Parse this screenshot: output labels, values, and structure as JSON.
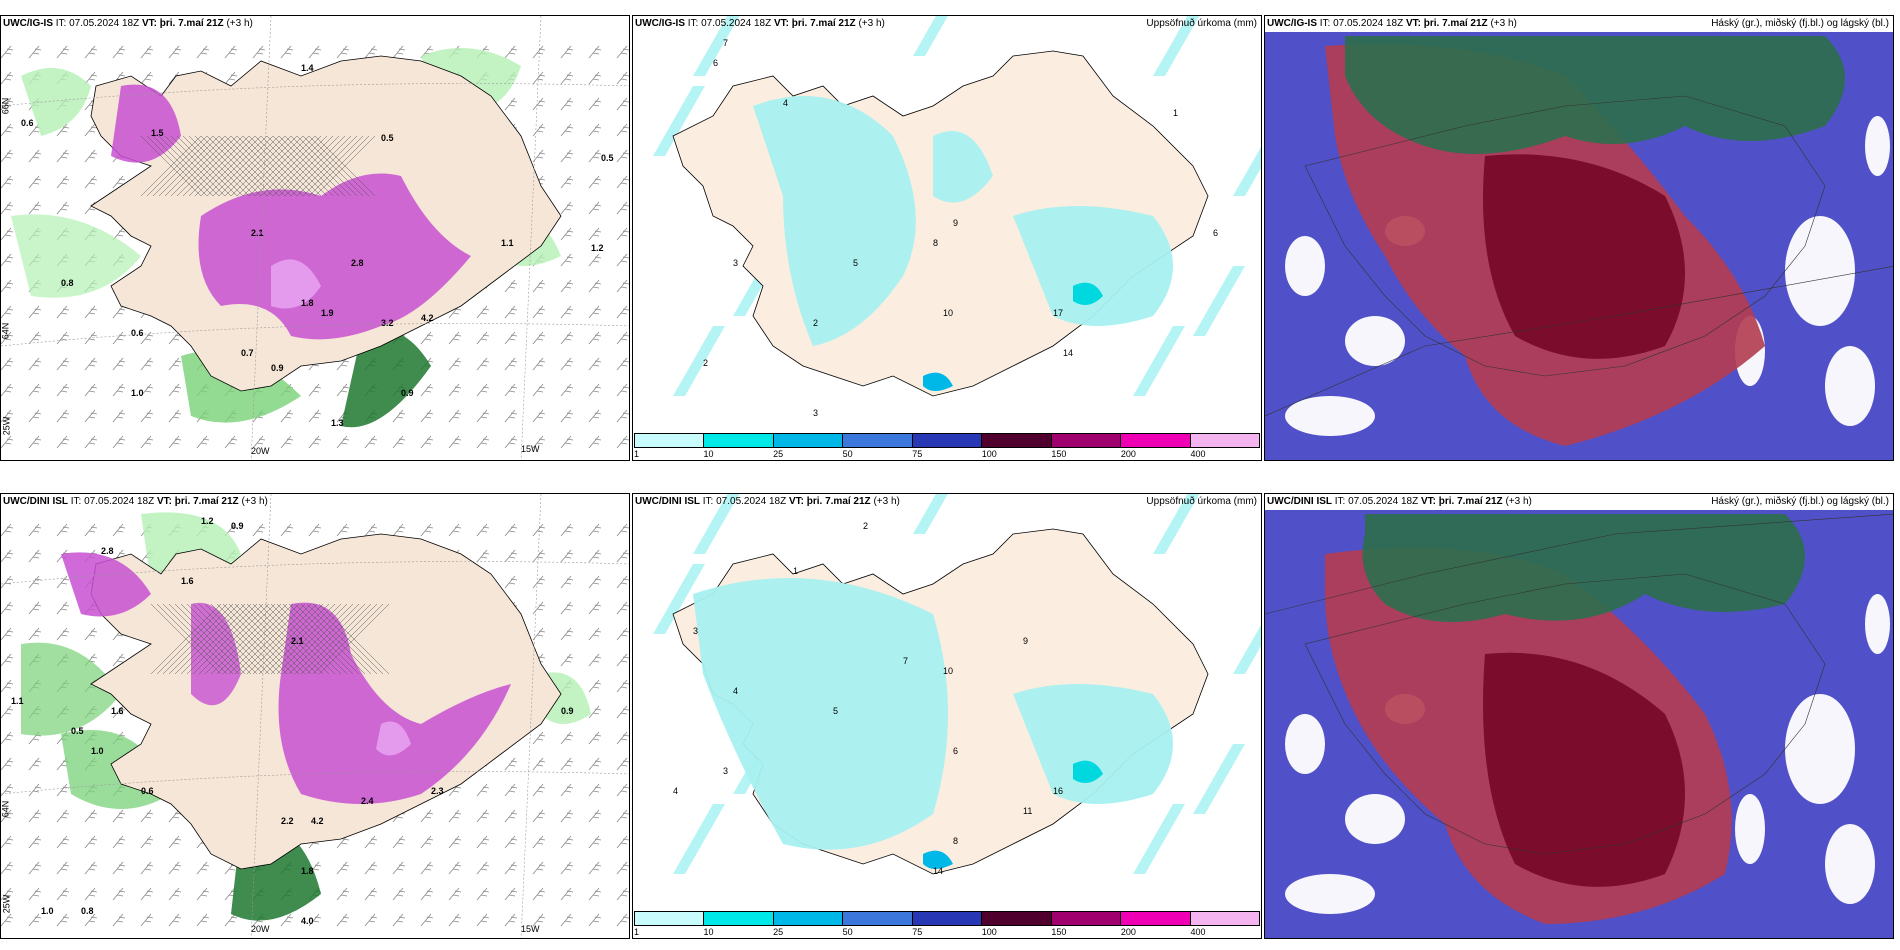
{
  "panels": [
    {
      "model": "UWC/IG-IS",
      "it_label": "IT:",
      "it_value": "07.05.2024 18Z",
      "vt_label": "VT:",
      "vt_value": "þri. 7.maí 21Z",
      "lead": "(+3 h)",
      "right_title": ""
    },
    {
      "model": "UWC/IG-IS",
      "it_label": "IT:",
      "it_value": "07.05.2024 18Z",
      "vt_label": "VT:",
      "vt_value": "þri. 7.maí 21Z",
      "lead": "(+3 h)",
      "right_title": "Uppsöfnuð úrkoma (mm)"
    },
    {
      "model": "UWC/IG-IS",
      "it_label": "IT:",
      "it_value": "07.05.2024 18Z",
      "vt_label": "VT:",
      "vt_value": "þri. 7.maí 21Z",
      "lead": "(+3 h)",
      "right_title": "Háský (gr.), miðský (fj.bl.) og lágský (bl.)"
    },
    {
      "model": "UWC/DINI ISL",
      "it_label": "IT:",
      "it_value": "07.05.2024 18Z",
      "vt_label": "VT:",
      "vt_value": "þri. 7.maí 21Z",
      "lead": "(+3 h)",
      "right_title": ""
    },
    {
      "model": "UWC/DINI ISL",
      "it_label": "IT:",
      "it_value": "07.05.2024 18Z",
      "vt_label": "VT:",
      "vt_value": "þri. 7.maí 21Z",
      "lead": "(+3 h)",
      "right_title": "Uppsöfnuð úrkoma (mm)"
    },
    {
      "model": "UWC/DINI ISL",
      "it_label": "IT:",
      "it_value": "07.05.2024 18Z",
      "vt_label": "VT:",
      "vt_value": "þri. 7.maí 21Z",
      "lead": "(+3 h)",
      "right_title": "Háský (gr.), miðský (fj.bl.) og lágský (bl.)"
    }
  ],
  "axes": {
    "lon_20": "20W",
    "lon_15": "15W",
    "lat_66": "66N",
    "lat_64": "64N",
    "lon_25": "25W"
  },
  "colorbar": {
    "labels": [
      "1",
      "10",
      "25",
      "50",
      "75",
      "100",
      "150",
      "200",
      "400"
    ],
    "colors": [
      "#c8fbfb",
      "#00e8e8",
      "#00b8e8",
      "#3c78dc",
      "#2838b4",
      "#50002c",
      "#a0006e",
      "#f000b4",
      "#f4b4f0"
    ]
  },
  "precip_values_top": [
    "0.6",
    "0.5",
    "1.4",
    "0.5",
    "1.5",
    "2.1",
    "2.8",
    "3.2",
    "4.2",
    "1.0",
    "0.9",
    "1.1",
    "1.2",
    "0.7",
    "0.8",
    "0.6",
    "1.3",
    "0.9",
    "1.8",
    "1.9"
  ],
  "precip_values_bottom": [
    "1.1",
    "0.9",
    "2.8",
    "1.6",
    "0.6",
    "1.0",
    "2.1",
    "2.2",
    "4.2",
    "2.4",
    "2.3",
    "1.8",
    "4.0",
    "0.8",
    "1.0",
    "0.9",
    "1.6",
    "0.5",
    "1.2"
  ],
  "accum_values_top": [
    "7",
    "6",
    "4",
    "3",
    "2",
    "5",
    "8",
    "9",
    "10",
    "17",
    "14",
    "1",
    "2",
    "3",
    "6"
  ],
  "accum_values_bottom": [
    "2",
    "3",
    "4",
    "5",
    "6",
    "7",
    "8",
    "10",
    "11",
    "16",
    "14",
    "3",
    "4",
    "1",
    "9"
  ]
}
